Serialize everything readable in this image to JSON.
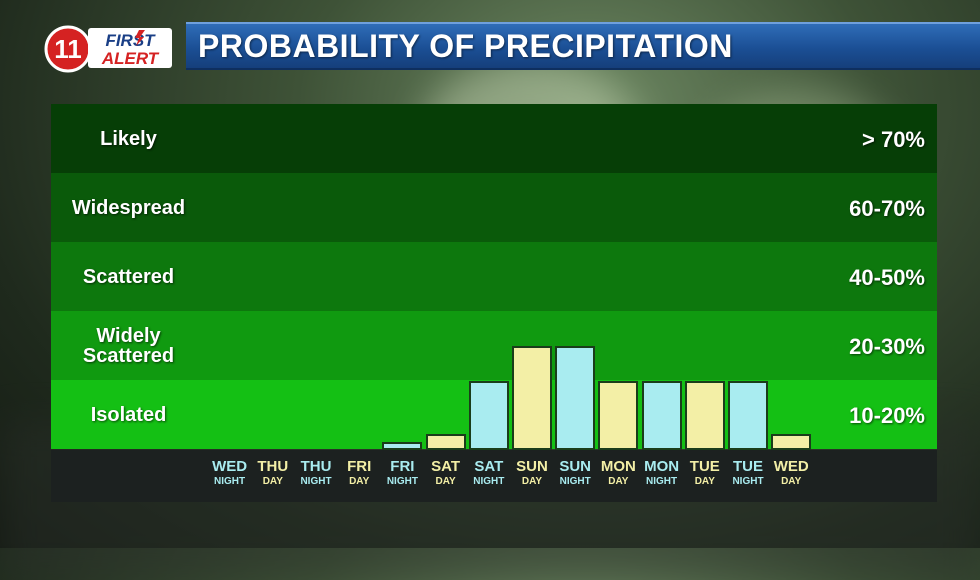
{
  "header": {
    "logo_number": "11",
    "logo_line1": "FIRST",
    "logo_line2": "ALERT",
    "title": "PROBABILITY OF PRECIPITATION"
  },
  "colors": {
    "band_likely": "#063e06",
    "band_widespread": "#0a5a0a",
    "band_scattered": "#0d780d",
    "band_widely_scattered": "#109a10",
    "band_isolated": "#14c014",
    "bar_night": "#a9ecf0",
    "bar_day": "#f3efa6",
    "logo_red": "#d52222",
    "logo_blue": "#1a3f86"
  },
  "chart_data": {
    "type": "bar",
    "categories": [
      {
        "day": "WED",
        "period": "NIGHT"
      },
      {
        "day": "THU",
        "period": "DAY"
      },
      {
        "day": "THU",
        "period": "NIGHT"
      },
      {
        "day": "FRI",
        "period": "DAY"
      },
      {
        "day": "FRI",
        "period": "NIGHT"
      },
      {
        "day": "SAT",
        "period": "DAY"
      },
      {
        "day": "SAT",
        "period": "NIGHT"
      },
      {
        "day": "SUN",
        "period": "DAY"
      },
      {
        "day": "SUN",
        "period": "NIGHT"
      },
      {
        "day": "MON",
        "period": "DAY"
      },
      {
        "day": "MON",
        "period": "NIGHT"
      },
      {
        "day": "TUE",
        "period": "DAY"
      },
      {
        "day": "TUE",
        "period": "NIGHT"
      },
      {
        "day": "WED",
        "period": "DAY"
      }
    ],
    "values": [
      0,
      0,
      0,
      0,
      5,
      10,
      20,
      30,
      30,
      20,
      20,
      20,
      20,
      10
    ],
    "ylim": [
      0,
      100
    ],
    "categories_bands": [
      {
        "label": "Likely",
        "range": "> 70%"
      },
      {
        "label": "Widespread",
        "range": "60-70%"
      },
      {
        "label": "Scattered",
        "range": "40-50%"
      },
      {
        "label": "Widely Scattered",
        "range": "20-30%"
      },
      {
        "label": "Isolated",
        "range": "10-20%"
      }
    ]
  }
}
